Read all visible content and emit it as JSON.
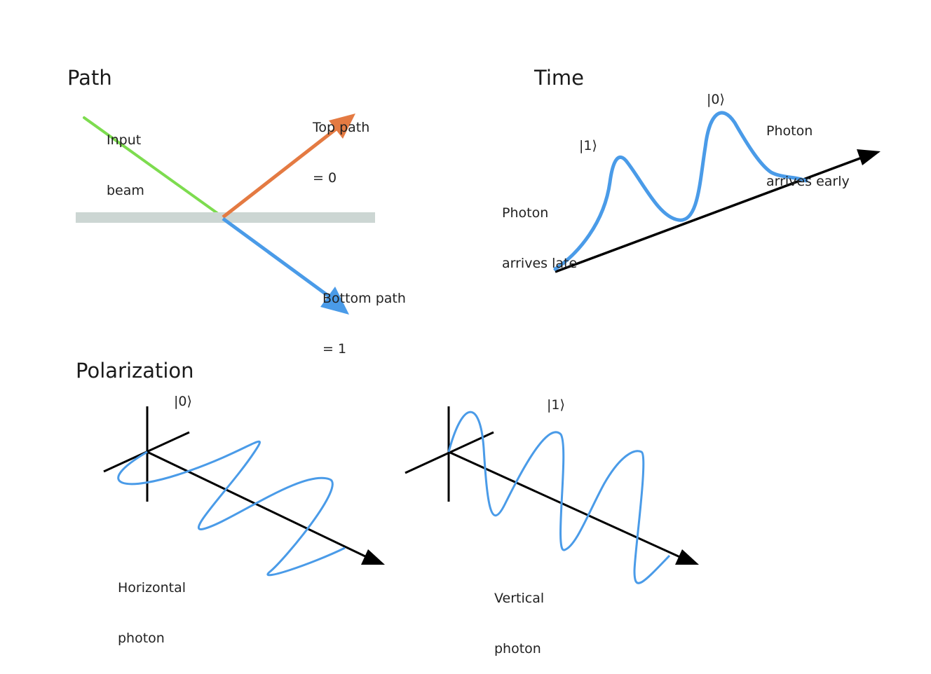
{
  "colors": {
    "background": "#ffffff",
    "ink": "#000000",
    "photon_wave": "#4a9be8",
    "input_beam": "#7ddc4f",
    "top_path": "#e47a42",
    "bottom_path": "#4a9be8",
    "beam_splitter": "#ccd6d3"
  },
  "path_panel": {
    "title": "Path",
    "input_label_1": "Input",
    "input_label_2": "beam",
    "top_label_1": "Top path",
    "top_label_2": "= 0",
    "bottom_label_1": "Bottom path",
    "bottom_label_2": "= 1"
  },
  "time_panel": {
    "title": "Time",
    "ket_zero": "|0⟩",
    "ket_one": "|1⟩",
    "early_label_1": "Photon",
    "early_label_2": "arrives early",
    "late_label_1": "Photon",
    "late_label_2": "arrives late"
  },
  "polarization_panel": {
    "title": "Polarization",
    "ket_zero": "|0⟩",
    "ket_one": "|1⟩",
    "horizontal_label_1": "Horizontal",
    "horizontal_label_2": "photon",
    "vertical_label_1": "Vertical",
    "vertical_label_2": "photon"
  }
}
